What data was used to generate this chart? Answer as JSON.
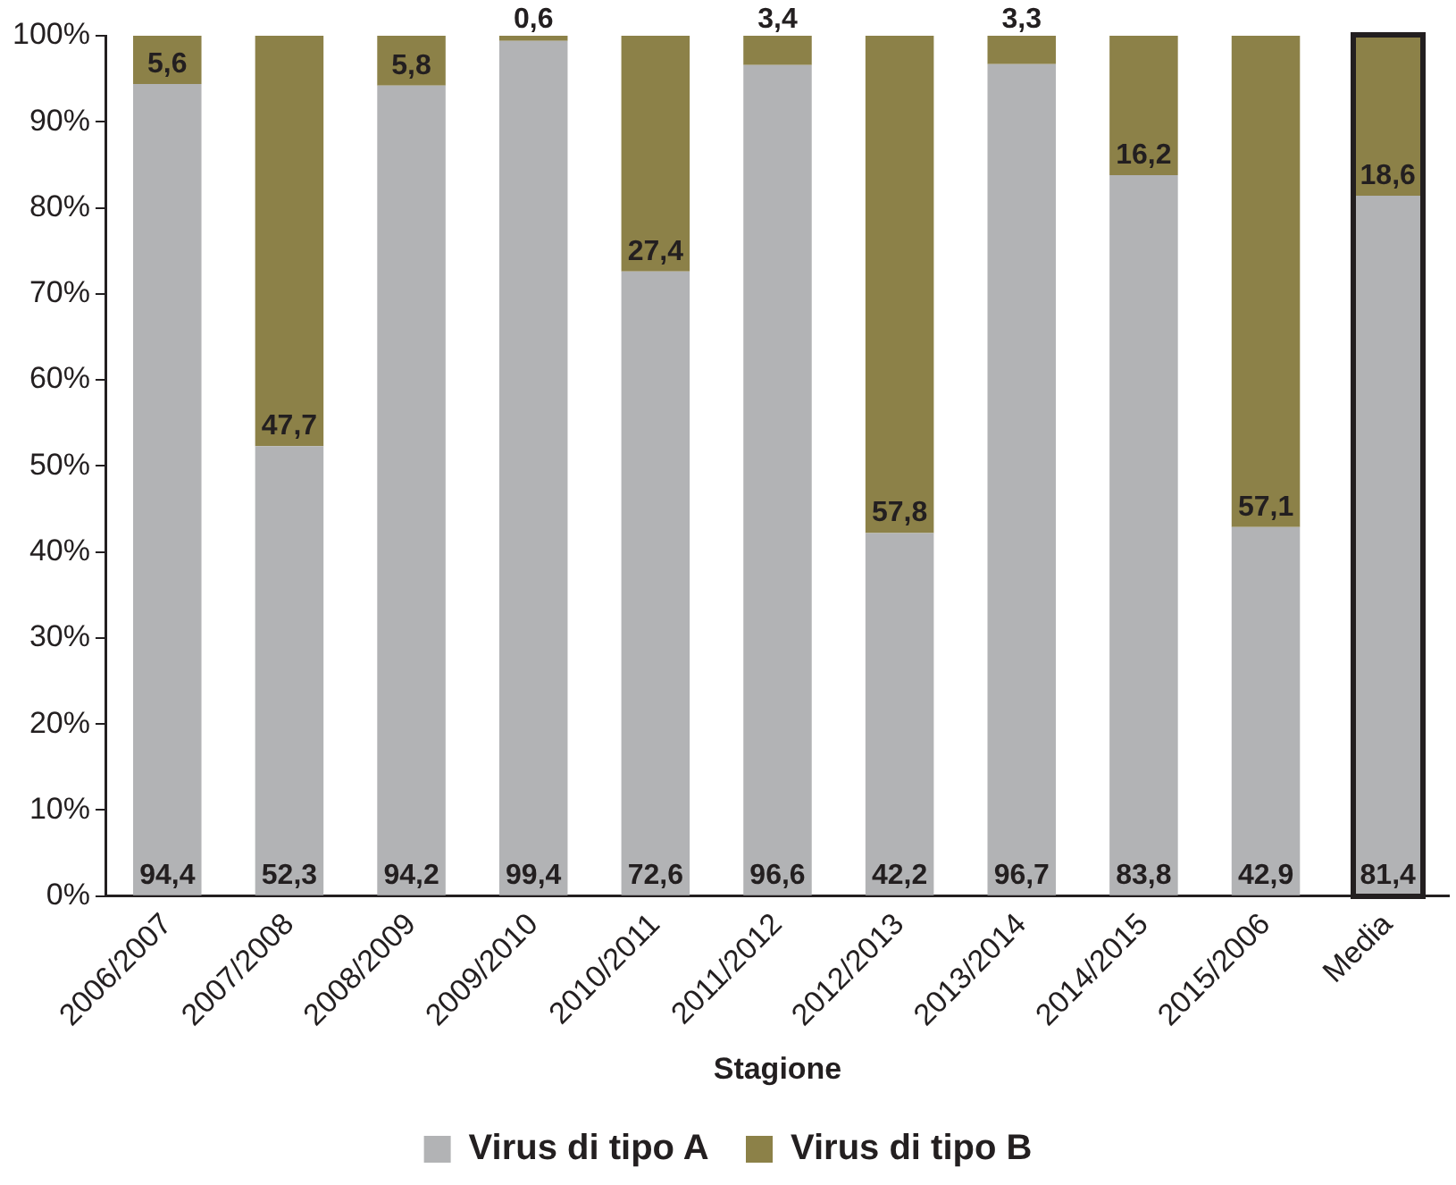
{
  "chart_data": {
    "type": "bar",
    "stacked": true,
    "xlabel": "Stagione",
    "categories": [
      "2006/2007",
      "2007/2008",
      "2008/2009",
      "2009/2010",
      "2010/2011",
      "2011/2012",
      "2012/2013",
      "2013/2014",
      "2014/2015",
      "2015/2006",
      "Media"
    ],
    "series": [
      {
        "name": "Virus di tipo A",
        "color": "#b2b3b5",
        "values": [
          94.4,
          52.3,
          94.2,
          99.4,
          72.6,
          96.6,
          42.2,
          96.7,
          83.8,
          42.9,
          81.4
        ],
        "value_labels": [
          "94,4",
          "52,3",
          "94,2",
          "99,4",
          "72,6",
          "96,6",
          "42,2",
          "96,7",
          "83,8",
          "42,9",
          "81,4"
        ]
      },
      {
        "name": "Virus di tipo B",
        "color": "#8c8148",
        "values": [
          5.6,
          47.7,
          5.8,
          0.6,
          27.4,
          3.4,
          57.8,
          3.3,
          16.2,
          57.1,
          18.6
        ],
        "value_labels": [
          "5,6",
          "47,7",
          "5,8",
          "0,6",
          "27,4",
          "3,4",
          "57,8",
          "3,3",
          "16,2",
          "57,1",
          "18,6"
        ]
      }
    ],
    "ylim": [
      0,
      100
    ],
    "yticks": [
      {
        "value": 0,
        "label": "0%"
      },
      {
        "value": 10,
        "label": "10%"
      },
      {
        "value": 20,
        "label": "20%"
      },
      {
        "value": 30,
        "label": "30%"
      },
      {
        "value": 40,
        "label": "40%"
      },
      {
        "value": 50,
        "label": "50%"
      },
      {
        "value": 60,
        "label": "60%"
      },
      {
        "value": 70,
        "label": "70%"
      },
      {
        "value": 80,
        "label": "80%"
      },
      {
        "value": 90,
        "label": "90%"
      },
      {
        "value": 100,
        "label": "100%"
      }
    ],
    "grid": false,
    "legend": "bottom"
  }
}
